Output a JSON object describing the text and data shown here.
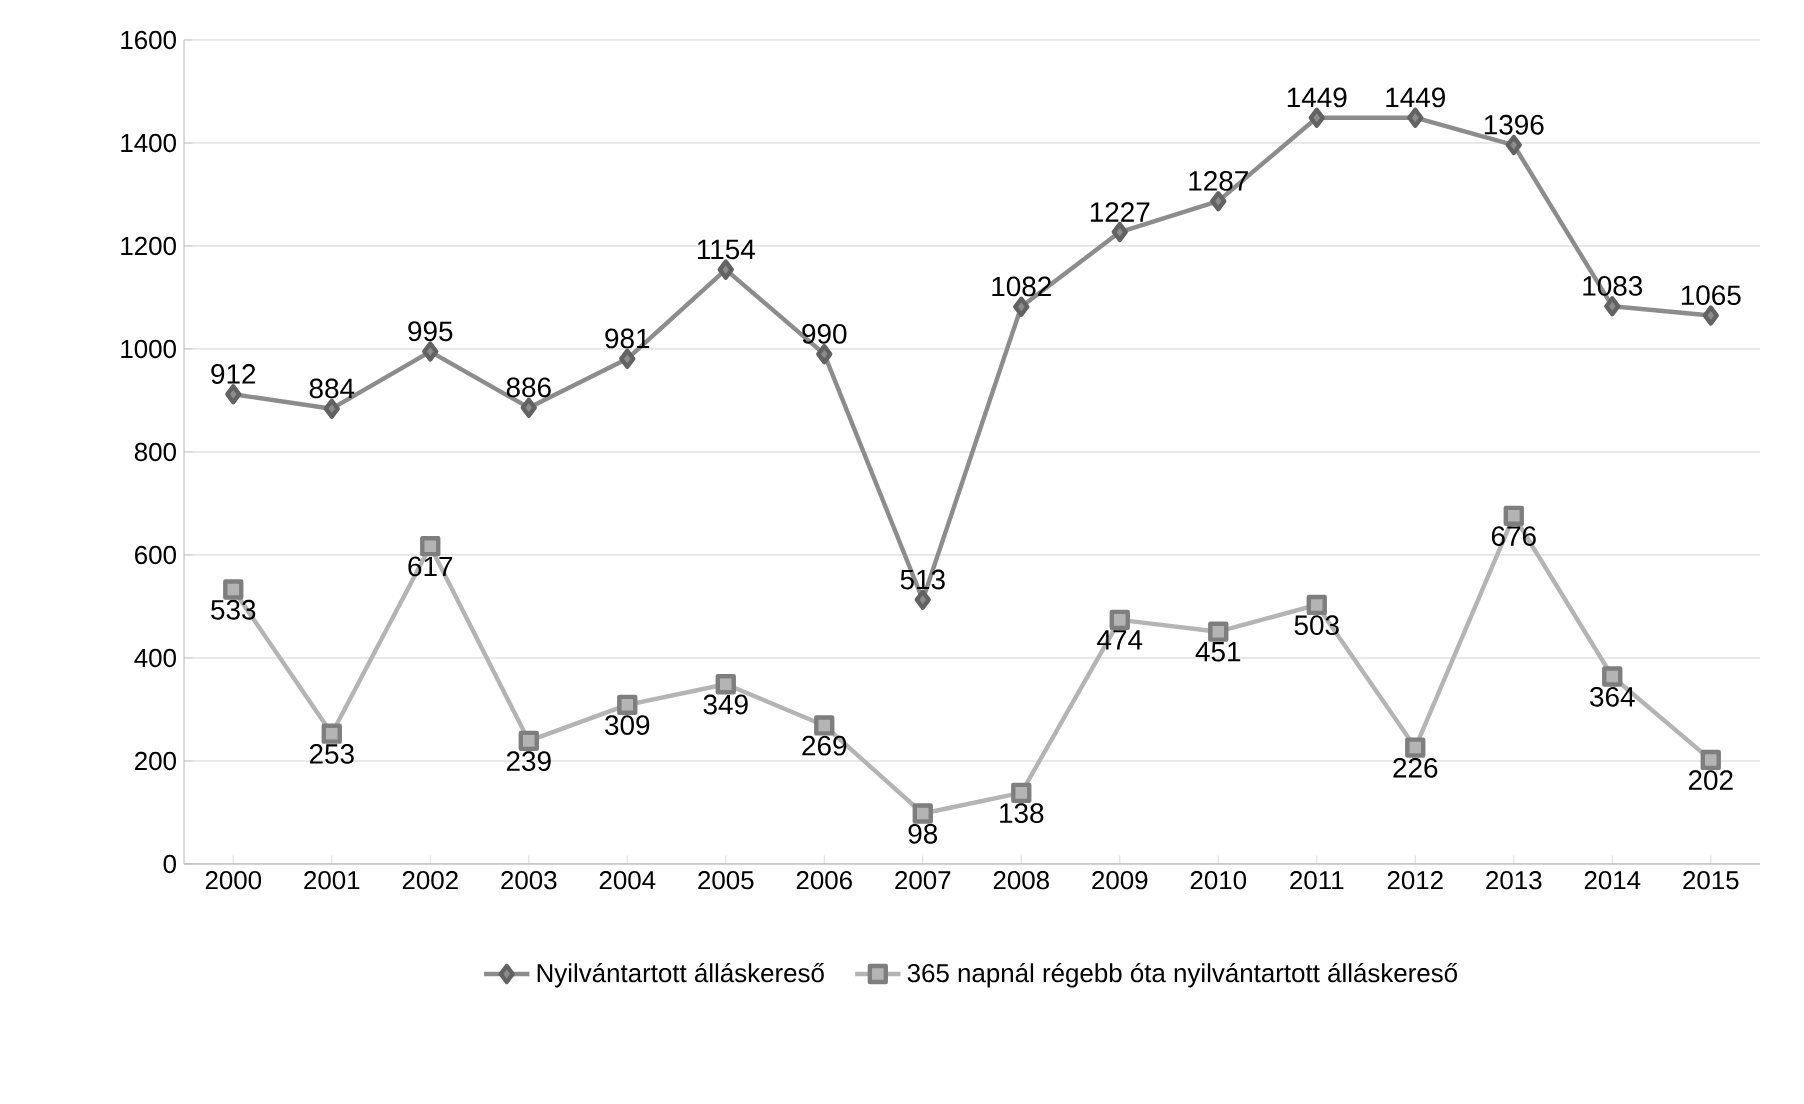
{
  "chart_data": {
    "type": "line",
    "categories": [
      "2000",
      "2001",
      "2002",
      "2003",
      "2004",
      "2005",
      "2006",
      "2007",
      "2008",
      "2009",
      "2010",
      "2011",
      "2012",
      "2013",
      "2014",
      "2015"
    ],
    "series": [
      {
        "name": "Nyilvántartott álláskereső",
        "color": "#8c8c8c",
        "marker": "diamond",
        "values": [
          912,
          884,
          995,
          886,
          981,
          1154,
          990,
          513,
          1082,
          1227,
          1287,
          1449,
          1449,
          1396,
          1083,
          1065
        ]
      },
      {
        "name": "365 napnál régebb óta nyilvántartott álláskereső",
        "color": "#b4b4b4",
        "marker": "square",
        "values": [
          533,
          253,
          617,
          239,
          309,
          349,
          269,
          98,
          138,
          474,
          451,
          503,
          226,
          676,
          364,
          202
        ]
      }
    ],
    "ylim": [
      0,
      1600
    ],
    "yticks": [
      0,
      200,
      400,
      600,
      800,
      1000,
      1200,
      1400,
      1600
    ],
    "grid": "y",
    "legend": "bottom",
    "data_labels": true
  }
}
